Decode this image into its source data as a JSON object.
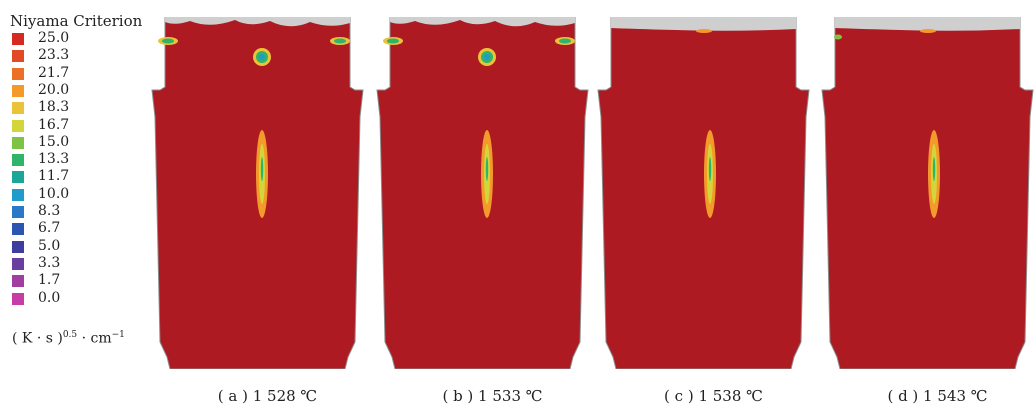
{
  "legend": {
    "title": "Niyama Criterion",
    "entries": [
      {
        "label": "25.0",
        "color": "#d42a22"
      },
      {
        "label": "23.3",
        "color": "#e24a25"
      },
      {
        "label": "21.7",
        "color": "#ec6f26"
      },
      {
        "label": "20.0",
        "color": "#f39a2a"
      },
      {
        "label": "18.3",
        "color": "#eac33a"
      },
      {
        "label": "16.7",
        "color": "#d3d63a"
      },
      {
        "label": "15.0",
        "color": "#7ec444"
      },
      {
        "label": "13.3",
        "color": "#2fb46a"
      },
      {
        "label": "11.7",
        "color": "#1aa79a"
      },
      {
        "label": "10.0",
        "color": "#1f9cc9"
      },
      {
        "label": "8.3",
        "color": "#2a78c8"
      },
      {
        "label": "6.7",
        "color": "#2c55b0"
      },
      {
        "label": "5.0",
        "color": "#3d3e9e"
      },
      {
        "label": "3.3",
        "color": "#6a3e9e"
      },
      {
        "label": "1.7",
        "color": "#a03fa0"
      },
      {
        "label": "0.0",
        "color": "#c83ca8"
      }
    ],
    "units_main": "( K · s )",
    "units_exp": "0.5",
    "units_tail": "· cm",
    "units_tail_exp": "−1"
  },
  "panels": [
    {
      "caption": "( a ) 1 528 ℃",
      "top_defects": true,
      "center_spot": true
    },
    {
      "caption": "( b ) 1 533 ℃",
      "top_defects": true,
      "center_spot": true
    },
    {
      "caption": "( c ) 1 538 ℃",
      "top_defects": false,
      "center_spot": false
    },
    {
      "caption": "( d ) 1 543 ℃",
      "top_defects": false,
      "center_spot": false
    }
  ],
  "colors": {
    "body": "#ad1a22",
    "void": "#cfcfcf"
  }
}
